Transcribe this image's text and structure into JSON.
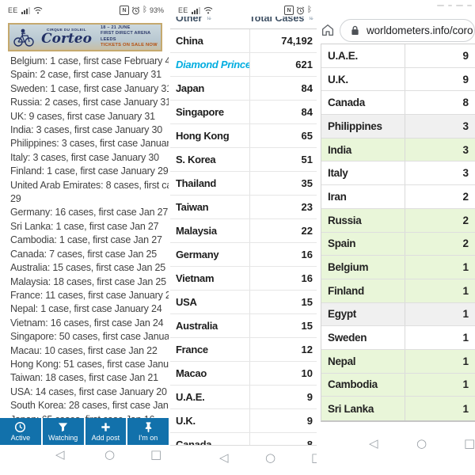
{
  "colors": {
    "action_blue": "#1271ab",
    "link_cyan": "#00ade0",
    "row_green": "#e9f6d9",
    "row_gray": "#f0f0f0",
    "banner_navy": "#223064",
    "banner_orange": "#b5500f"
  },
  "android_nav": {
    "back": "◁",
    "home": "○",
    "recents": "□"
  },
  "left_panel": {
    "status_bar": {
      "carrier": "EE",
      "nfc": "N",
      "battery": "93%"
    },
    "banner": {
      "brand": "CIRQUE DU SOLEIL",
      "title": "Corteo",
      "dates": "18 – 21 JUNE",
      "venue": "FIRST DIRECT ARENA",
      "city": "LEEDS",
      "cta": "TICKETS ON SALE NOW"
    },
    "cases_list": [
      "Belgium: 1 case, first case February 4",
      "Spain: 2 case, first case January 31",
      "Sweden: 1 case, first case January 31",
      "Russia: 2 cases, first case January 31",
      "UK: 9 cases, first case January 31",
      "India: 3 cases, first case January 30",
      "Philippines: 3 cases, first case January",
      "Italy: 3 cases, first case January 30",
      "Finland: 1 case, first case January 29",
      "United Arab Emirates: 8 cases, first case",
      "29",
      "Germany: 16 cases, first case Jan 27",
      "Sri Lanka: 1 case, first case Jan 27",
      "Cambodia: 1 case, first case Jan 27",
      "Canada: 7 cases, first case Jan 25",
      "Australia: 15 cases, first case Jan 25",
      "Malaysia: 18 cases, first case Jan 25",
      "France: 11 cases, first case January 24",
      "Nepal: 1 case, first case January 24",
      "Vietnam: 16 cases, first case Jan 24",
      "Singapore: 50 cases, first case January",
      "Macau: 10 cases, first case Jan 22",
      "Hong Kong: 51 cases, first case January",
      "Taiwan: 18 cases, first case Jan 21",
      "USA: 14 cases, first case January 20",
      "South Korea: 28 cases, first case Janua",
      "Japan: 65 cases, first case Jan 16"
    ],
    "actions": [
      {
        "icon": "clock-icon",
        "label": "Active"
      },
      {
        "icon": "filter-icon",
        "label": "Watching"
      },
      {
        "icon": "plus-icon",
        "label": "Add post"
      },
      {
        "icon": "pin-icon",
        "label": "I'm on"
      }
    ]
  },
  "middle_panel": {
    "status_bar": {
      "carrier": "EE",
      "nfc": "N"
    },
    "table": {
      "col1_header": "Other",
      "col2_header": "Total Cases",
      "sort_icon": "⇅",
      "rows": [
        {
          "country": "China",
          "cases": "74,192"
        },
        {
          "country": "Diamond Princess",
          "cases": "621",
          "link": true
        },
        {
          "country": "Japan",
          "cases": "84"
        },
        {
          "country": "Singapore",
          "cases": "84"
        },
        {
          "country": "Hong Kong",
          "cases": "65"
        },
        {
          "country": "S. Korea",
          "cases": "51"
        },
        {
          "country": "Thailand",
          "cases": "35"
        },
        {
          "country": "Taiwan",
          "cases": "23"
        },
        {
          "country": "Malaysia",
          "cases": "22"
        },
        {
          "country": "Germany",
          "cases": "16"
        },
        {
          "country": "Vietnam",
          "cases": "16"
        },
        {
          "country": "USA",
          "cases": "15"
        },
        {
          "country": "Australia",
          "cases": "15"
        },
        {
          "country": "France",
          "cases": "12"
        },
        {
          "country": "Macao",
          "cases": "10"
        },
        {
          "country": "U.A.E.",
          "cases": "9"
        },
        {
          "country": "U.K.",
          "cases": "9"
        },
        {
          "country": "Canada",
          "cases": "8"
        }
      ]
    }
  },
  "right_panel": {
    "url_bar": {
      "url": "worldometers.info/coro"
    },
    "table_rows": [
      {
        "country": "U.A.E.",
        "cases": "9",
        "bg": "white"
      },
      {
        "country": "U.K.",
        "cases": "9",
        "bg": "white"
      },
      {
        "country": "Canada",
        "cases": "8",
        "bg": "white"
      },
      {
        "country": "Philippines",
        "cases": "3",
        "bg": "gray"
      },
      {
        "country": "India",
        "cases": "3",
        "bg": "green"
      },
      {
        "country": "Italy",
        "cases": "3",
        "bg": "white"
      },
      {
        "country": "Iran",
        "cases": "2",
        "bg": "white"
      },
      {
        "country": "Russia",
        "cases": "2",
        "bg": "green"
      },
      {
        "country": "Spain",
        "cases": "2",
        "bg": "green"
      },
      {
        "country": "Belgium",
        "cases": "1",
        "bg": "green"
      },
      {
        "country": "Finland",
        "cases": "1",
        "bg": "green"
      },
      {
        "country": "Egypt",
        "cases": "1",
        "bg": "gray"
      },
      {
        "country": "Sweden",
        "cases": "1",
        "bg": "white"
      },
      {
        "country": "Nepal",
        "cases": "1",
        "bg": "green"
      },
      {
        "country": "Cambodia",
        "cases": "1",
        "bg": "green"
      },
      {
        "country": "Sri Lanka",
        "cases": "1",
        "bg": "green"
      }
    ]
  }
}
